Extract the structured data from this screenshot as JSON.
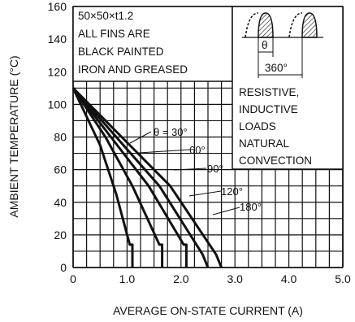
{
  "chart_data": {
    "type": "line",
    "xlabel": "AVERAGE ON-STATE CURRENT  (A)",
    "ylabel": "AMBIENT TEMPERATURE  (°C)",
    "xlim": [
      0,
      5.0
    ],
    "ylim": [
      0,
      160
    ],
    "x_ticks": [
      "0",
      "1.0",
      "2.0",
      "3.0",
      "4.0",
      "5.0"
    ],
    "y_ticks": [
      "0",
      "20",
      "40",
      "60",
      "80",
      "100",
      "120",
      "140",
      "160"
    ],
    "grid": true,
    "notes_left": [
      "50×50×t1.2",
      "ALL FINS ARE",
      "BLACK PAINTED",
      "IRON AND GREASED"
    ],
    "notes_right": [
      "RESISTIVE,",
      "INDUCTIVE",
      "LOADS",
      "NATURAL",
      "CONVECTION"
    ],
    "waveform": {
      "theta_label": "θ",
      "period_label": "360°"
    },
    "series": [
      {
        "name": "θ = 30°",
        "x": [
          0,
          0.5,
          0.8,
          1.05,
          1.1,
          1.1
        ],
        "y": [
          110,
          75,
          45,
          14,
          14,
          0
        ]
      },
      {
        "name": "60°",
        "x": [
          0,
          0.6,
          1.1,
          1.6,
          1.65,
          1.65
        ],
        "y": [
          110,
          80,
          50,
          14,
          14,
          0
        ]
      },
      {
        "name": "90°",
        "x": [
          0,
          0.7,
          1.4,
          2.05,
          2.1,
          2.1
        ],
        "y": [
          110,
          80,
          50,
          14,
          14,
          0
        ]
      },
      {
        "name": "120°",
        "x": [
          0,
          0.8,
          1.6,
          2.4,
          2.5
        ],
        "y": [
          110,
          80,
          50,
          8,
          0
        ]
      },
      {
        "name": "180°",
        "x": [
          0,
          0.9,
          1.8,
          2.65,
          2.75
        ],
        "y": [
          110,
          80,
          50,
          8,
          0
        ]
      }
    ],
    "curve_labels": [
      "θ = 30°",
      "60°",
      "90°",
      "120°",
      "180°"
    ]
  }
}
